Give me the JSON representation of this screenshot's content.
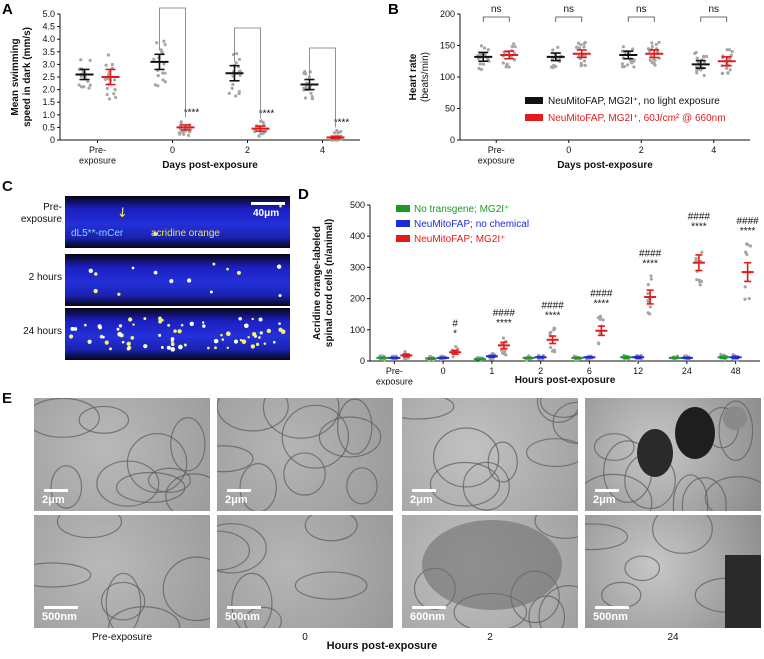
{
  "panels": [
    "A",
    "B",
    "C",
    "D",
    "E"
  ],
  "chart_data": [
    {
      "id": "A",
      "type": "scatter",
      "ylabel": "Mean swimming\nspeed in dark (mm/s)",
      "xlabel": "Days post-exposure",
      "categories": [
        "Pre-\nexposure",
        "0",
        "2",
        "4"
      ],
      "ylim": [
        0,
        5
      ],
      "yticks": [
        0,
        0.5,
        1.0,
        1.5,
        2.0,
        2.5,
        3.0,
        3.5,
        4.0,
        4.5,
        5.0
      ],
      "ytick_labels": [
        "0",
        "0.5",
        "1.0",
        "1.5",
        "2.0",
        "2.5",
        "3.0",
        "3.5",
        "4.0",
        "4.5",
        "5.0"
      ],
      "series": [
        {
          "color": "#111111",
          "means": [
            2.6,
            3.1,
            2.65,
            2.2
          ],
          "errs": [
            0.2,
            0.3,
            0.3,
            0.2
          ]
        },
        {
          "color": "#e31a1c",
          "means": [
            2.5,
            0.5,
            0.45,
            0.1
          ],
          "errs": [
            0.3,
            0.1,
            0.1,
            0.05
          ]
        }
      ],
      "significance": [
        "",
        "****",
        "****",
        "****"
      ]
    },
    {
      "id": "B",
      "type": "scatter",
      "ylabel": "Heart rate",
      "ylabel2": "(beats/min)",
      "xlabel": "Days post-exposure",
      "categories": [
        "Pre-\nexposure",
        "0",
        "2",
        "4"
      ],
      "ylim": [
        0,
        200
      ],
      "yticks": [
        0,
        50,
        100,
        150,
        200
      ],
      "series": [
        {
          "name": "NeuMitoFAP, MG2I⁺, no light exposure",
          "color": "#111111",
          "means": [
            132,
            132,
            135,
            120
          ],
          "errs": [
            7,
            6,
            6,
            6
          ]
        },
        {
          "name": "NeuMitoFAP, MG2I⁺, 60J/cm² @ 660nm",
          "color": "#e31a1c",
          "means": [
            135,
            137,
            137,
            125
          ],
          "errs": [
            6,
            6,
            6,
            7
          ]
        }
      ],
      "significance": [
        "ns",
        "ns",
        "ns",
        "ns"
      ]
    },
    {
      "id": "D",
      "type": "scatter",
      "ylabel": "Acridine orange-labeled\nspinal cord cells (n/animal)",
      "xlabel": "Hours post-exposure",
      "categories": [
        "Pre-\nexposure",
        "0",
        "1",
        "2",
        "6",
        "12",
        "24",
        "48"
      ],
      "ylim": [
        0,
        500
      ],
      "yticks": [
        0,
        100,
        200,
        300,
        400,
        500
      ],
      "series": [
        {
          "name": "No transgene; MG2I⁺",
          "color": "#1a9a2a",
          "means": [
            10,
            8,
            6,
            10,
            10,
            12,
            10,
            12
          ],
          "errs": [
            2,
            2,
            2,
            2,
            2,
            3,
            2,
            3
          ]
        },
        {
          "name": "NeuMitoFAP; no chemical",
          "color": "#1f2bd6",
          "means": [
            10,
            10,
            15,
            12,
            12,
            12,
            10,
            12
          ],
          "errs": [
            2,
            2,
            3,
            2,
            2,
            3,
            2,
            3
          ]
        },
        {
          "name": "NeuMitoFAP; MG2I⁺",
          "color": "#e31a1c",
          "means": [
            18,
            28,
            50,
            68,
            97,
            205,
            315,
            285
          ],
          "errs": [
            4,
            6,
            10,
            12,
            15,
            22,
            25,
            30
          ]
        }
      ],
      "sig_top": [
        "",
        "#",
        "####",
        "####",
        "####",
        "####",
        "####",
        "####"
      ],
      "sig_bottom": [
        "",
        "*",
        "****",
        "****",
        "****",
        "****",
        "****",
        "****"
      ]
    }
  ],
  "panelC": {
    "rows": [
      "Pre-\nexposure",
      "2 hours",
      "24 hours"
    ],
    "scale_label": "40μm",
    "label_mcer": "dL5**-mCer",
    "label_ao": "acridine orange"
  },
  "panelE": {
    "top_scale": [
      "2μm",
      "2μm",
      "2μm",
      "2μm"
    ],
    "bottom_scale": [
      "500nm",
      "500nm",
      "600nm",
      "500nm"
    ],
    "captions": [
      "Pre-exposure",
      "0",
      "2",
      "24"
    ],
    "xlabel": "Hours post-exposure"
  }
}
